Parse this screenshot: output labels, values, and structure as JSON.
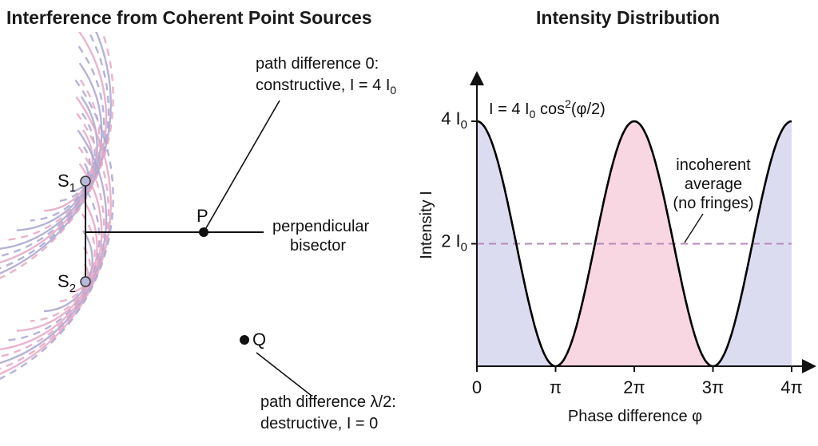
{
  "left_panel": {
    "title": "Interference from Coherent Point Sources",
    "sources": [
      {
        "label": "S",
        "sub": "1"
      },
      {
        "label": "S",
        "sub": "2"
      }
    ],
    "points": {
      "p": "P",
      "q": "Q"
    },
    "bisector_label": [
      "perpendicular",
      "bisector"
    ],
    "constructive_annotation": {
      "line1": "path difference 0:",
      "line2_prefix": "constructive, I = 4 I",
      "line2_sub": "0"
    },
    "destructive_annotation": {
      "line1": "path difference λ/2:",
      "line2": "destructive, I = 0"
    },
    "colors": {
      "source1_waves": "#a8a6d0",
      "source2_waves": "#e6a6c4",
      "source_dot": "#b9b9d9"
    }
  },
  "right_panel": {
    "title": "Intensity Distribution",
    "formula": {
      "prefix": "I = 4 I",
      "sub": "0",
      "mid": " cos",
      "sup": "2",
      "suffix": "(φ/2)"
    },
    "incoherent_label": [
      "incoherent",
      "average",
      "(no fringes)"
    ],
    "colors": {
      "curve": "#000000",
      "fill_outer": "#dcdcf0",
      "fill_middle": "#f8d6e2",
      "average_line": "#b58ab8"
    }
  },
  "chart_data": {
    "type": "line",
    "title": "Intensity Distribution",
    "xlabel": "Phase difference φ",
    "ylabel": "Intensity I",
    "x_tick_labels": [
      "0",
      "π",
      "2π",
      "3π",
      "4π"
    ],
    "x_ticks": [
      0,
      3.14159,
      6.28319,
      9.42478,
      12.56637
    ],
    "y_tick_labels": [
      {
        "main": "4 I",
        "sub": "0"
      },
      {
        "main": "2 I",
        "sub": "0"
      }
    ],
    "y_ticks": [
      4,
      2
    ],
    "xlim": [
      0,
      12.566
    ],
    "ylim": [
      0,
      4.6
    ],
    "series": [
      {
        "formula": "I = 4 I0 cos^2(φ/2)",
        "x": [
          0,
          1.5708,
          3.1416,
          4.7124,
          6.2832,
          7.854,
          9.4248,
          10.9956,
          12.5664
        ],
        "y": [
          4,
          2,
          0,
          2,
          4,
          2,
          0,
          2,
          4
        ]
      },
      {
        "name": "incoherent average (no fringes)",
        "x": [
          0,
          12.5664
        ],
        "y": [
          2,
          2
        ],
        "style": "dashed"
      }
    ],
    "grid": false
  }
}
